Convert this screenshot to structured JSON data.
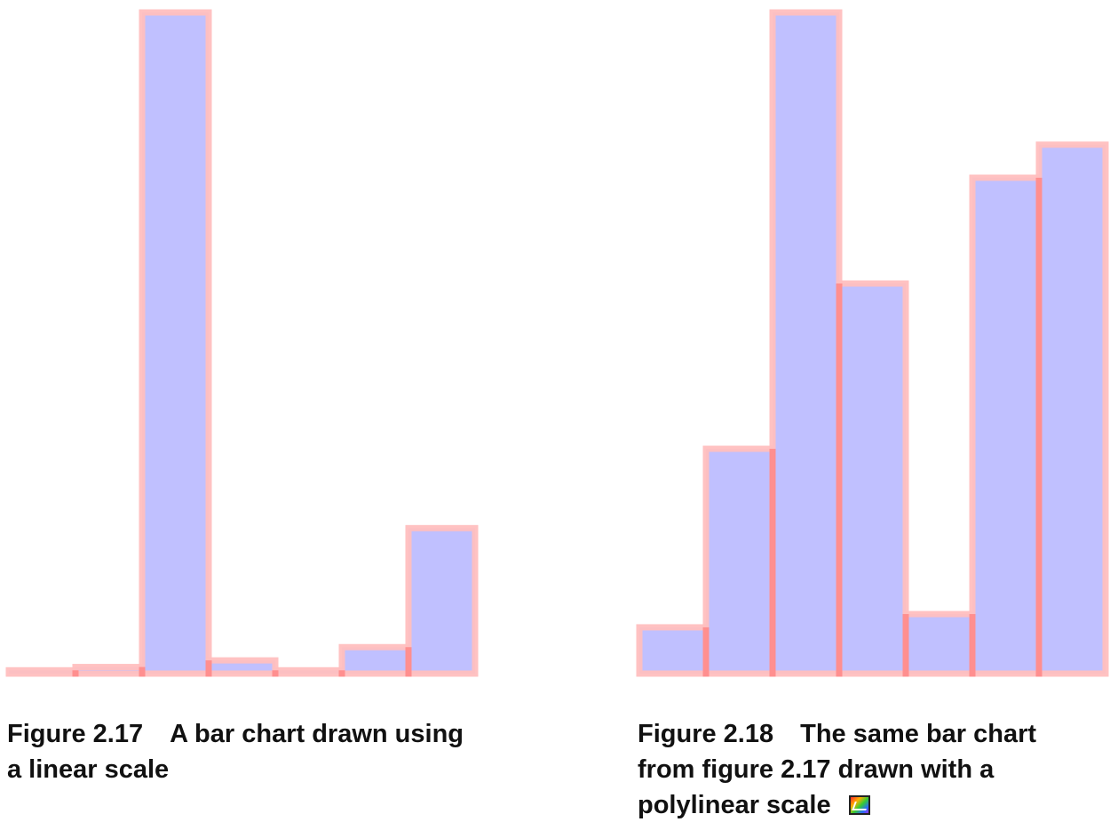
{
  "chart_data": [
    {
      "type": "bar",
      "scale": "linear",
      "values": [
        0.5,
        1,
        100,
        2,
        0.5,
        4,
        22
      ],
      "ylim": [
        0,
        100
      ],
      "grid": false,
      "legend": "none",
      "bar_fill": "#c0c0ff",
      "bar_stroke": "#ffbfbf",
      "caption_number": "Figure 2.17",
      "caption_text": "A bar chart drawn using a linear scale"
    },
    {
      "type": "bar",
      "scale": "polylinear",
      "values": [
        7,
        34,
        100,
        59,
        9,
        75,
        80
      ],
      "ylim": [
        0,
        100
      ],
      "grid": false,
      "legend": "none",
      "bar_fill": "#c0c0ff",
      "bar_stroke": "#ffbfbf",
      "caption_number": "Figure 2.18",
      "caption_text": "The same bar chart from figure 2.17 drawn with a polylinear scale",
      "caption_icon": "color-chart-icon"
    }
  ]
}
